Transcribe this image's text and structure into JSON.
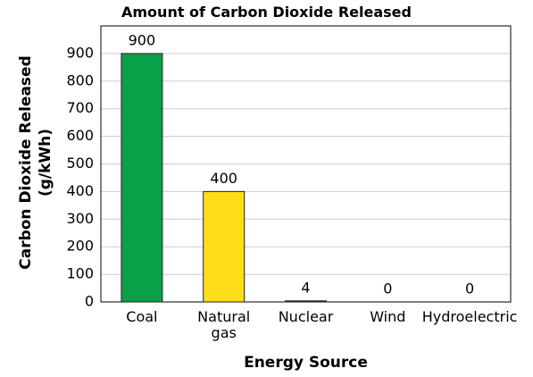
{
  "chart_data": {
    "type": "bar",
    "title": "Amount of Carbon Dioxide Released",
    "x_label": "Energy Source",
    "y_label": "Carbon Dioxide Released (g/kWh)",
    "categories": [
      "Coal",
      "Natural gas",
      "Nuclear",
      "Wind",
      "Hydroelectric"
    ],
    "values": [
      900,
      400,
      4,
      0,
      0
    ],
    "colors": [
      "#0a9f49",
      "#ffdd17",
      "#1b2a6e",
      "#1b2a6e",
      "#1b2a6e"
    ],
    "ylim": [
      0,
      1000
    ],
    "yticks": [
      0,
      100,
      200,
      300,
      400,
      500,
      600,
      700,
      800,
      900
    ],
    "grid": true
  }
}
